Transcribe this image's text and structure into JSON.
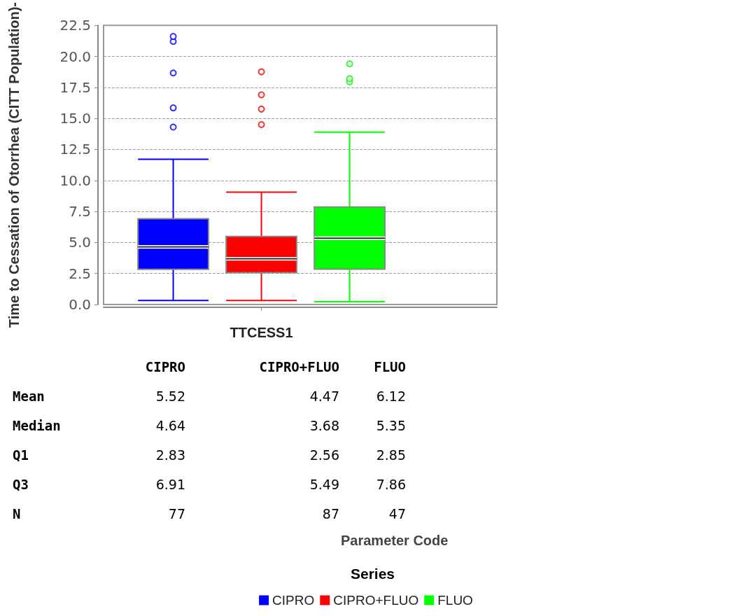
{
  "chart_data": {
    "type": "box",
    "ylabel": "Time to Cessation of Otorrhea (CITT Population)-",
    "legend_title": "Series",
    "legend": "bottom",
    "grid": "y",
    "categories": [
      "TTCESS1"
    ],
    "ylim": [
      0,
      22.5
    ],
    "yticks": [
      {
        "value": 0,
        "label": "0.0"
      },
      {
        "value": 2.5,
        "label": "2.5"
      },
      {
        "value": 5,
        "label": "5.0"
      },
      {
        "value": 7.5,
        "label": "7.5"
      },
      {
        "value": 10,
        "label": "10.0"
      },
      {
        "value": 12.5,
        "label": "12.5"
      },
      {
        "value": 15,
        "label": "15.0"
      },
      {
        "value": 17.5,
        "label": "17.5"
      },
      {
        "value": 20,
        "label": "20.0"
      },
      {
        "value": 22.5,
        "label": "22.5"
      }
    ],
    "series": [
      {
        "name": "CIPRO",
        "color": "#0000ff",
        "boxes": [
          {
            "low": 0.33,
            "q1": 2.83,
            "median": 4.64,
            "q3": 6.91,
            "high": 11.7,
            "outliers": [
              14.3,
              15.85,
              18.66,
              21.2,
              21.6
            ]
          }
        ]
      },
      {
        "name": "CIPRO+FLUO",
        "color": "#ff0000",
        "boxes": [
          {
            "low": 0.33,
            "q1": 2.56,
            "median": 3.68,
            "q3": 5.49,
            "high": 9.06,
            "outliers": [
              14.5,
              15.75,
              16.9,
              18.75
            ]
          }
        ]
      },
      {
        "name": "FLUO",
        "color": "#00ff00",
        "boxes": [
          {
            "low": 0.22,
            "q1": 2.85,
            "median": 5.35,
            "q3": 7.86,
            "high": 13.9,
            "outliers": [
              17.95,
              18.2,
              19.4
            ]
          }
        ]
      }
    ],
    "annotations": [
      "Mean",
      "5.52",
      "4.47",
      "6.12",
      "Median",
      "4.64",
      "3.68",
      "5.35",
      "Q1",
      "2.83",
      "2.56",
      "2.85",
      "Q3",
      "6.91",
      "5.49",
      "7.86",
      "N",
      "77",
      "87",
      "47",
      "Parameter Code"
    ]
  }
}
